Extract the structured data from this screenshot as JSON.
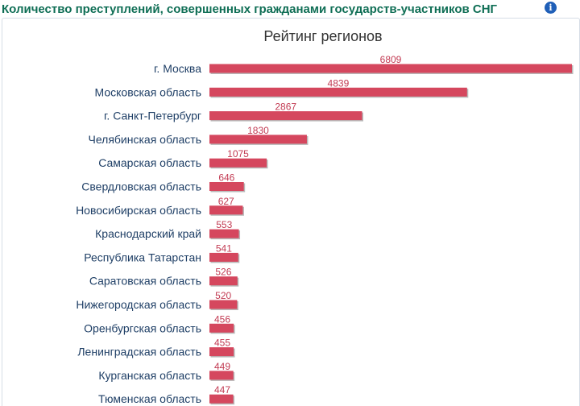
{
  "header": {
    "title": "Количество преступлений, совершенных гражданами государств-участников СНГ",
    "info_icon": "info-icon"
  },
  "colors": {
    "bar": "#d5475e",
    "bar_shadow": "#b9b9b9",
    "header_title": "#0f6e55",
    "category_label": "#1f3f66",
    "value_label": "#c23a52"
  },
  "chart_data": {
    "type": "bar",
    "orientation": "horizontal",
    "title": "Рейтинг регионов",
    "categories": [
      "г. Москва",
      "Московская область",
      "г. Санкт-Петербург",
      "Челябинская область",
      "Самарская область",
      "Свердловская область",
      "Новосибирская область",
      "Краснодарский край",
      "Республика Татарстан",
      "Саратовская область",
      "Нижегородская область",
      "Оренбургская область",
      "Ленинградская область",
      "Курганская область",
      "Тюменская область"
    ],
    "values": [
      6809,
      4839,
      2867,
      1830,
      1075,
      646,
      627,
      553,
      541,
      526,
      520,
      456,
      455,
      449,
      447
    ],
    "xlim": [
      0,
      6809
    ],
    "grid": false,
    "legend": "none"
  }
}
